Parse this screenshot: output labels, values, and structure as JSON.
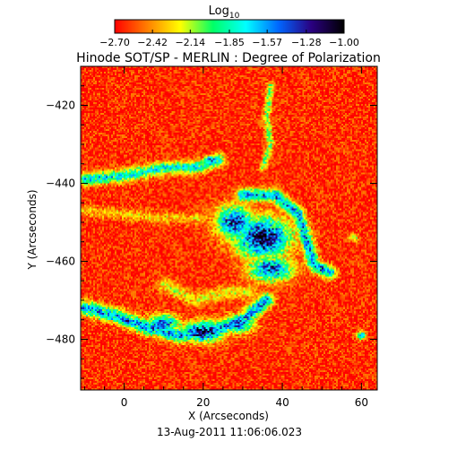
{
  "chart_data": {
    "type": "heatmap",
    "title": "Hinode SOT/SP - MERLIN : Degree of Polarization",
    "colorbar": {
      "label": "Log",
      "label_subscript": "10",
      "ticks": [
        "-2.70",
        "-2.42",
        "-2.14",
        "-1.85",
        "-1.57",
        "-1.28",
        "-1.00"
      ],
      "range": [
        -2.7,
        -1.0
      ],
      "colormap": [
        "#ff0000",
        "#ff7f00",
        "#ffff00",
        "#00ff66",
        "#00ffff",
        "#0066ff",
        "#2a0080",
        "#000000"
      ]
    },
    "xlabel": "X (Arcseconds)",
    "ylabel": "Y (Arcseconds)",
    "xlim": [
      -11,
      64
    ],
    "ylim": [
      -493,
      -410
    ],
    "xticks": [
      {
        "value": 0,
        "label": "0"
      },
      {
        "value": 20,
        "label": "20"
      },
      {
        "value": 40,
        "label": "40"
      },
      {
        "value": 60,
        "label": "60"
      }
    ],
    "yticks": [
      {
        "value": -420,
        "label": "−420"
      },
      {
        "value": -440,
        "label": "−440"
      },
      {
        "value": -460,
        "label": "−460"
      },
      {
        "value": -480,
        "label": "−480"
      }
    ],
    "background_level": -2.62,
    "features": [
      {
        "kind": "blob",
        "cx": 35,
        "cy": -454,
        "rx": 7.5,
        "ry": 5.5,
        "peak": -1.0
      },
      {
        "kind": "blob",
        "cx": 28,
        "cy": -450,
        "rx": 5.0,
        "ry": 4.5,
        "peak": -1.2
      },
      {
        "kind": "blob",
        "cx": 37,
        "cy": -462,
        "rx": 6.0,
        "ry": 3.5,
        "peak": -1.3
      },
      {
        "kind": "blob",
        "cx": 20,
        "cy": -478,
        "rx": 5.5,
        "ry": 2.8,
        "peak": -1.05
      },
      {
        "kind": "blob",
        "cx": 10,
        "cy": -476,
        "rx": 4.5,
        "ry": 2.5,
        "peak": -1.35
      },
      {
        "kind": "blob",
        "cx": 29,
        "cy": -476,
        "rx": 4.0,
        "ry": 2.5,
        "peak": -1.4
      },
      {
        "kind": "ridge",
        "points": [
          [
            -10,
            -472
          ],
          [
            -2,
            -474
          ],
          [
            6,
            -477
          ],
          [
            14,
            -479
          ],
          [
            22,
            -478
          ],
          [
            30,
            -475
          ],
          [
            36,
            -470
          ]
        ],
        "width": 1.8,
        "peak": -1.5
      },
      {
        "kind": "ridge",
        "points": [
          [
            -10,
            -439
          ],
          [
            0,
            -438
          ],
          [
            10,
            -436
          ],
          [
            18,
            -436
          ],
          [
            24,
            -434
          ]
        ],
        "width": 1.6,
        "peak": -1.7
      },
      {
        "kind": "ridge",
        "points": [
          [
            30,
            -443
          ],
          [
            38,
            -443
          ],
          [
            44,
            -448
          ],
          [
            46,
            -454
          ],
          [
            48,
            -461
          ],
          [
            52,
            -463
          ]
        ],
        "width": 1.6,
        "peak": -1.5
      },
      {
        "kind": "ridge",
        "points": [
          [
            37,
            -415
          ],
          [
            36,
            -423
          ],
          [
            37,
            -430
          ],
          [
            35,
            -436
          ]
        ],
        "width": 0.9,
        "peak": -2.0
      },
      {
        "kind": "ridge",
        "points": [
          [
            -10,
            -447
          ],
          [
            0,
            -448
          ],
          [
            10,
            -449
          ],
          [
            20,
            -449
          ]
        ],
        "width": 1.5,
        "peak": -2.3
      },
      {
        "kind": "ridge",
        "points": [
          [
            10,
            -466
          ],
          [
            18,
            -470
          ],
          [
            26,
            -468
          ],
          [
            32,
            -468
          ]
        ],
        "width": 1.8,
        "peak": -2.2
      },
      {
        "kind": "blob",
        "cx": 22,
        "cy": -434,
        "rx": 1.8,
        "ry": 1.2,
        "peak": -1.3
      },
      {
        "kind": "blob",
        "cx": 60,
        "cy": -479,
        "rx": 1.2,
        "ry": 1.2,
        "peak": -1.5
      },
      {
        "kind": "blob",
        "cx": 58,
        "cy": -454,
        "rx": 1.3,
        "ry": 1.0,
        "peak": -2.0
      }
    ],
    "caption": "13-Aug-2011 11:06:06.023"
  }
}
